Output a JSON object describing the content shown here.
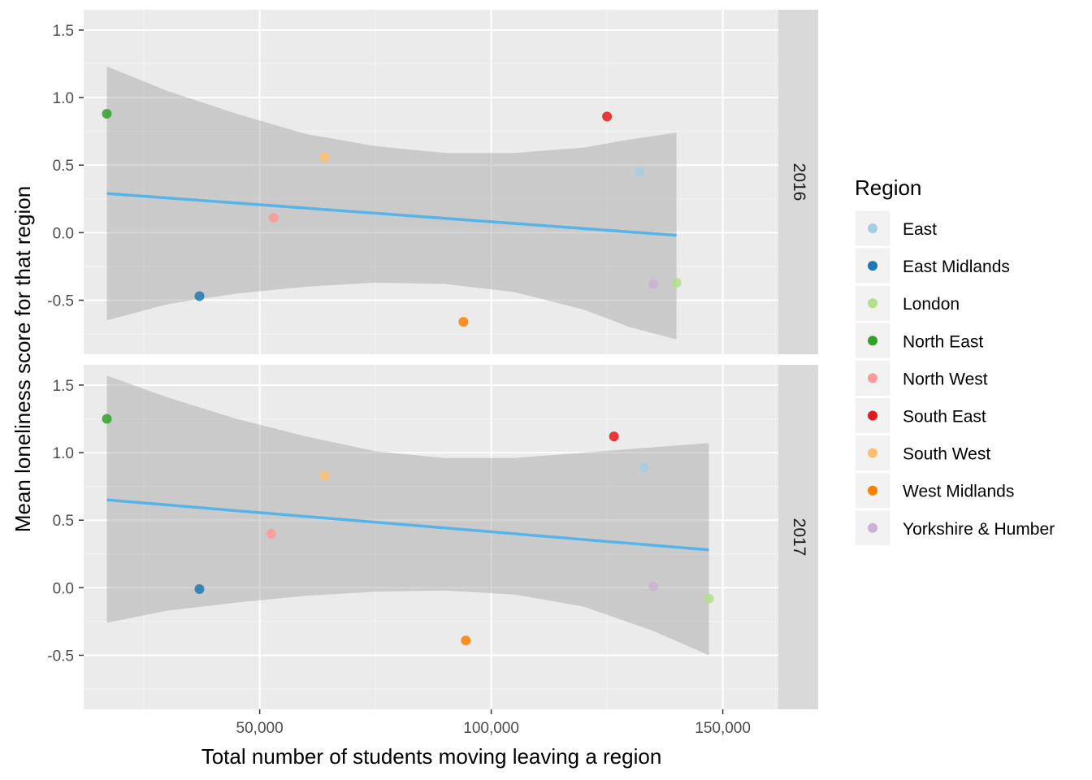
{
  "chart_data": {
    "type": "scatter",
    "xlabel": "Total number of students moving leaving a region",
    "ylabel": "Mean loneliness score for that region",
    "x_ticks": [
      50000,
      100000,
      150000
    ],
    "x_tick_labels": [
      "50,000",
      "100,000",
      "150,000"
    ],
    "y_ticks": [
      -0.5,
      0.0,
      0.5,
      1.0,
      1.5
    ],
    "y_tick_labels": [
      "-0.5",
      "0.0",
      "0.5",
      "1.0",
      "1.5"
    ],
    "xlim": [
      12000,
      162000
    ],
    "ylim": [
      -0.9,
      1.65
    ],
    "grid": true,
    "legend": {
      "title": "Region",
      "placement": "right",
      "entries": [
        {
          "name": "East",
          "color": "#a6cee3"
        },
        {
          "name": "East Midlands",
          "color": "#1f78b4"
        },
        {
          "name": "London",
          "color": "#b2df8a"
        },
        {
          "name": "North East",
          "color": "#33a02c"
        },
        {
          "name": "North West",
          "color": "#fb9a99"
        },
        {
          "name": "South East",
          "color": "#e31a1c"
        },
        {
          "name": "South West",
          "color": "#fdbf6f"
        },
        {
          "name": "West Midlands",
          "color": "#ff7f00"
        },
        {
          "name": "Yorkshire & Humber",
          "color": "#cab2d6"
        }
      ]
    },
    "trend_color": "#56b4e9",
    "band_color": "#999999",
    "panels": [
      {
        "label": "2016",
        "points": [
          {
            "region": "East",
            "x": 132000,
            "y": 0.45
          },
          {
            "region": "East Midlands",
            "x": 37000,
            "y": -0.47
          },
          {
            "region": "London",
            "x": 140000,
            "y": -0.37
          },
          {
            "region": "North East",
            "x": 17000,
            "y": 0.88
          },
          {
            "region": "North West",
            "x": 53000,
            "y": 0.11
          },
          {
            "region": "South East",
            "x": 125000,
            "y": 0.86
          },
          {
            "region": "South West",
            "x": 64000,
            "y": 0.56
          },
          {
            "region": "West Midlands",
            "x": 94000,
            "y": -0.66
          },
          {
            "region": "Yorkshire & Humber",
            "x": 135000,
            "y": -0.38
          }
        ],
        "trend": {
          "x": [
            17000,
            140000
          ],
          "y": [
            0.29,
            -0.02
          ]
        },
        "band": {
          "x": [
            17000,
            30000,
            45000,
            60000,
            75000,
            90000,
            105000,
            120000,
            130000,
            140000
          ],
          "lower": [
            -0.65,
            -0.53,
            -0.45,
            -0.4,
            -0.37,
            -0.38,
            -0.44,
            -0.57,
            -0.7,
            -0.79
          ],
          "upper": [
            1.23,
            1.05,
            0.88,
            0.73,
            0.64,
            0.59,
            0.59,
            0.63,
            0.69,
            0.74
          ]
        }
      },
      {
        "label": "2017",
        "points": [
          {
            "region": "East",
            "x": 133000,
            "y": 0.89
          },
          {
            "region": "East Midlands",
            "x": 37000,
            "y": -0.01
          },
          {
            "region": "London",
            "x": 147000,
            "y": -0.08
          },
          {
            "region": "North East",
            "x": 17000,
            "y": 1.25
          },
          {
            "region": "North West",
            "x": 52500,
            "y": 0.4
          },
          {
            "region": "South East",
            "x": 126500,
            "y": 1.12
          },
          {
            "region": "South West",
            "x": 64000,
            "y": 0.83
          },
          {
            "region": "West Midlands",
            "x": 94500,
            "y": -0.39
          },
          {
            "region": "Yorkshire & Humber",
            "x": 135000,
            "y": 0.01
          }
        ],
        "trend": {
          "x": [
            17000,
            147000
          ],
          "y": [
            0.65,
            0.28
          ]
        },
        "band": {
          "x": [
            17000,
            30000,
            45000,
            60000,
            75000,
            90000,
            105000,
            120000,
            135000,
            147000
          ],
          "lower": [
            -0.26,
            -0.17,
            -0.11,
            -0.06,
            -0.03,
            -0.02,
            -0.05,
            -0.14,
            -0.32,
            -0.5
          ],
          "upper": [
            1.57,
            1.41,
            1.25,
            1.12,
            1.01,
            0.96,
            0.96,
            1.0,
            1.04,
            1.07
          ]
        }
      }
    ]
  }
}
